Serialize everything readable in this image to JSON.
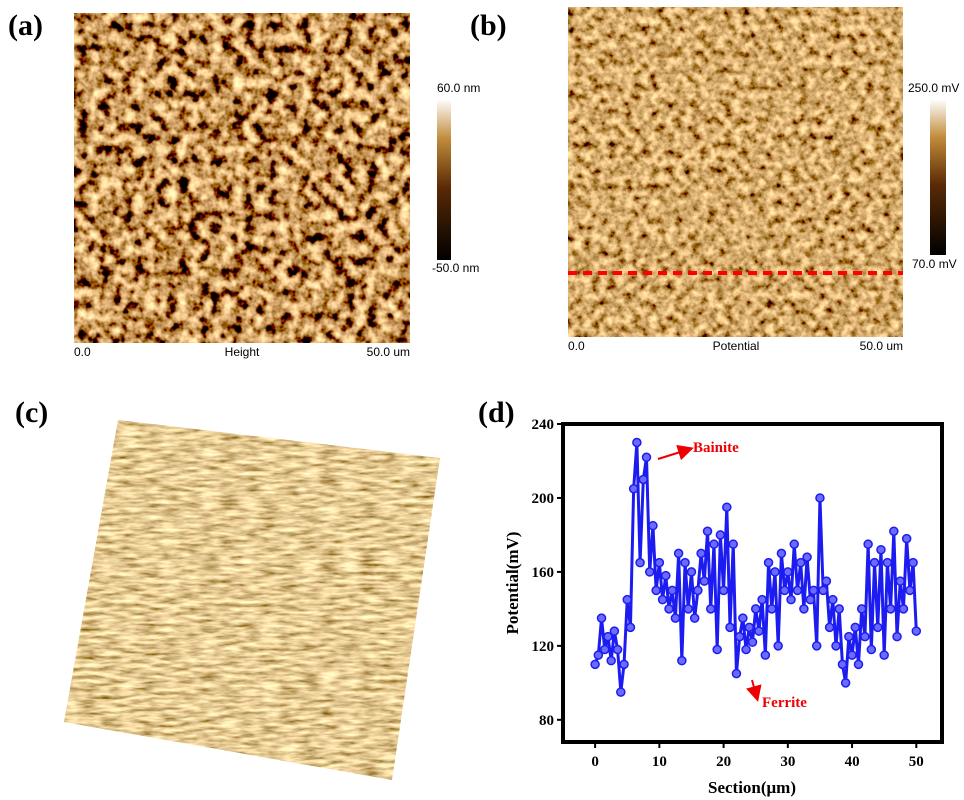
{
  "panels": [
    {
      "label": "(a)",
      "scale_start": "0.0",
      "channel": "Height",
      "scale_end": "50.0 um",
      "colorbar_max": "60.0 nm",
      "colorbar_min": "-50.0 nm"
    },
    {
      "label": "(b)",
      "scale_start": "0.0",
      "channel": "Potential",
      "scale_end": "50.0 um",
      "colorbar_max": "250.0 mV",
      "colorbar_min": "70.0 mV"
    },
    {
      "label": "(c)"
    }
  ],
  "chart_data": {
    "type": "line",
    "label": "(d)",
    "x_label": "Section(μm)",
    "y_label": "Potential(mV)",
    "annotations": [
      "Bainite",
      "Ferrite"
    ],
    "xlim": [
      -5,
      54
    ],
    "xticks": [
      0,
      10,
      20,
      30,
      40,
      50
    ],
    "ylim": [
      68,
      240
    ],
    "yticks": [
      80,
      120,
      160,
      200,
      240
    ],
    "x": [
      0,
      0.5,
      1,
      1.5,
      2,
      2.5,
      3,
      3.5,
      4,
      4.5,
      5,
      5.5,
      6,
      6.5,
      7,
      7.5,
      8,
      8.5,
      9,
      9.5,
      10,
      10.5,
      11,
      11.5,
      12,
      12.5,
      13,
      13.5,
      14,
      14.5,
      15,
      15.5,
      16,
      16.5,
      17,
      17.5,
      18,
      18.5,
      19,
      19.5,
      20,
      20.5,
      21,
      21.5,
      22,
      22.5,
      23,
      23.5,
      24,
      24.5,
      25,
      25.5,
      26,
      26.5,
      27,
      27.5,
      28,
      28.5,
      29,
      29.5,
      30,
      30.5,
      31,
      31.5,
      32,
      32.5,
      33,
      33.5,
      34,
      34.5,
      35,
      35.5,
      36,
      36.5,
      37,
      37.5,
      38,
      38.5,
      39,
      39.5,
      40,
      40.5,
      41,
      41.5,
      42,
      42.5,
      43,
      43.5,
      44,
      44.5,
      45,
      45.5,
      46,
      46.5,
      47,
      47.5,
      48,
      48.5,
      49,
      49.5,
      50
    ],
    "series": [
      {
        "color": "#1c1cf0",
        "values": [
          110,
          115,
          135,
          118,
          125,
          112,
          128,
          118,
          95,
          110,
          145,
          130,
          205,
          230,
          165,
          210,
          222,
          160,
          185,
          150,
          165,
          145,
          158,
          140,
          150,
          135,
          170,
          112,
          165,
          140,
          160,
          135,
          150,
          170,
          155,
          182,
          140,
          175,
          118,
          180,
          150,
          195,
          130,
          175,
          105,
          125,
          135,
          118,
          130,
          122,
          140,
          128,
          145,
          115,
          165,
          140,
          160,
          120,
          170,
          150,
          160,
          145,
          175,
          150,
          165,
          140,
          168,
          145,
          150,
          120,
          200,
          150,
          155,
          130,
          145,
          120,
          140,
          110,
          100,
          125,
          115,
          130,
          110,
          140,
          125,
          175,
          118,
          165,
          130,
          172,
          115,
          165,
          140,
          182,
          125,
          155,
          140,
          178,
          150,
          165,
          128
        ]
      }
    ]
  }
}
